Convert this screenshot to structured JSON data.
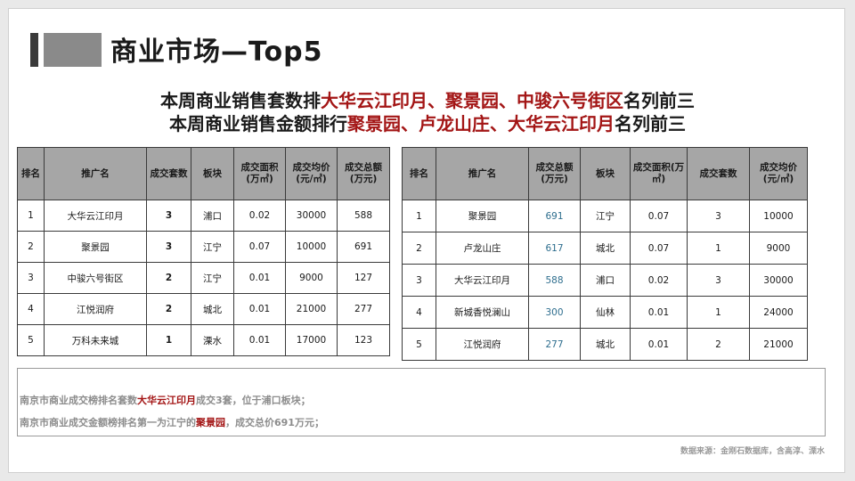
{
  "title": "商业市场—Top5",
  "headline1": {
    "pre": "本周商业销售套数排",
    "highlight": "大华云江印月、聚景园、中骏六号街区",
    "post": "名列前三"
  },
  "headline2": {
    "pre": "本周商业销售金额排行",
    "highlight": "聚景园、卢龙山庄、大华云江印月",
    "post": "名列前三"
  },
  "table1": {
    "headers": [
      "排名",
      "推广名",
      "成交套数",
      "板块",
      "成交面积\n(万㎡)",
      "成交均价\n(元/㎡)",
      "成交总额\n(万元)"
    ],
    "rows": [
      [
        "1",
        "大华云江印月",
        "3",
        "浦口",
        "0.02",
        "30000",
        "588"
      ],
      [
        "2",
        "聚景园",
        "3",
        "江宁",
        "0.07",
        "10000",
        "691"
      ],
      [
        "3",
        "中骏六号街区",
        "2",
        "江宁",
        "0.01",
        "9000",
        "127"
      ],
      [
        "4",
        "江悦润府",
        "2",
        "城北",
        "0.01",
        "21000",
        "277"
      ],
      [
        "5",
        "万科未来城",
        "1",
        "溧水",
        "0.01",
        "17000",
        "123"
      ]
    ]
  },
  "table2": {
    "headers": [
      "排名",
      "推广名",
      "成交总额\n(万元)",
      "板块",
      "成交面积(万\n㎡)",
      "成交套数",
      "成交均价\n(元/㎡)"
    ],
    "rows": [
      [
        "1",
        "聚景园",
        "691",
        "江宁",
        "0.07",
        "3",
        "10000"
      ],
      [
        "2",
        "卢龙山庄",
        "617",
        "城北",
        "0.07",
        "1",
        "9000"
      ],
      [
        "3",
        "大华云江印月",
        "588",
        "浦口",
        "0.02",
        "3",
        "30000"
      ],
      [
        "4",
        "新城香悦澜山",
        "300",
        "仙林",
        "0.01",
        "1",
        "24000"
      ],
      [
        "5",
        "江悦润府",
        "277",
        "城北",
        "0.01",
        "2",
        "21000"
      ]
    ]
  },
  "notes": {
    "line1": {
      "pre": "南京市商业成交榜排名套数",
      "highlight": "大华云江印月",
      "post": "成交3套，位于浦口板块；"
    },
    "line2": {
      "pre": "南京市商业成交金额榜排名第一为江宁的",
      "highlight": "聚景园",
      "post": "，成交总价691万元；"
    }
  },
  "source": "数据来源：金刚石数据库，含高淳、溧水",
  "colors": {
    "highlight": "#a31515",
    "header_bg": "#a6a6a6",
    "amount_blue": "#2e6e8e"
  }
}
